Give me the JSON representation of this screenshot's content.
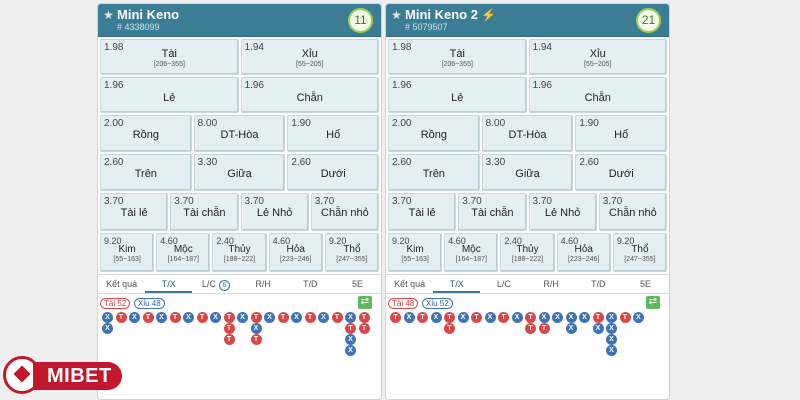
{
  "colors": {
    "header": "#3a7d94",
    "tai": "#d94848",
    "xiu": "#3f73b8",
    "brand": "#c2172c"
  },
  "panels": [
    {
      "title": "Mini Keno",
      "has_bolt": false,
      "game_id": "# 4338099",
      "count": "11",
      "r1": [
        {
          "odds": "1.98",
          "name": "Tài",
          "range": "[206~355]"
        },
        {
          "odds": "1.94",
          "name": "Xỉu",
          "range": "[55~205]"
        }
      ],
      "r2": [
        {
          "odds": "1.96",
          "name": "Lẻ"
        },
        {
          "odds": "1.96",
          "name": "Chẵn"
        }
      ],
      "r3": [
        {
          "odds": "2.00",
          "name": "Rồng"
        },
        {
          "odds": "8.00",
          "name": "DT-Hòa"
        },
        {
          "odds": "1.90",
          "name": "Hổ"
        }
      ],
      "r4": [
        {
          "odds": "2.60",
          "name": "Trên"
        },
        {
          "odds": "3.30",
          "name": "Giữa"
        },
        {
          "odds": "2.60",
          "name": "Dưới"
        }
      ],
      "r5": [
        {
          "odds": "3.70",
          "name": "Tài lẻ"
        },
        {
          "odds": "3.70",
          "name": "Tài chẵn"
        },
        {
          "odds": "3.70",
          "name": "Lẻ Nhỏ"
        },
        {
          "odds": "3.70",
          "name": "Chẵn nhỏ"
        }
      ],
      "r6": [
        {
          "odds": "9.20",
          "name": "Kim",
          "range": "[55~163]"
        },
        {
          "odds": "4.60",
          "name": "Mộc",
          "range": "[164~187]"
        },
        {
          "odds": "2.40",
          "name": "Thủy",
          "range": "[188~222]"
        },
        {
          "odds": "4.60",
          "name": "Hỏa",
          "range": "[223~246]"
        },
        {
          "odds": "9.20",
          "name": "Thổ",
          "range": "[247~355]"
        }
      ],
      "tabs": [
        "Kết quả",
        "T/X",
        "L/C",
        "R/H",
        "T/D",
        "5E"
      ],
      "lc_badge": "6",
      "tai_label": "Tài 52",
      "xiu_label": "Xỉu 48",
      "history": [
        [
          "X",
          "X"
        ],
        [
          "T"
        ],
        [
          "X"
        ],
        [
          "T"
        ],
        [
          "X"
        ],
        [
          "T"
        ],
        [
          "X"
        ],
        [
          "T"
        ],
        [
          "X"
        ],
        [
          "T",
          "T",
          "T"
        ],
        [
          "X"
        ],
        [
          "T",
          "X",
          "T"
        ],
        [
          "X"
        ],
        [
          "T"
        ],
        [
          "X"
        ],
        [
          "T"
        ],
        [
          "X"
        ],
        [
          "T"
        ],
        [
          "X",
          "T",
          "X",
          "X"
        ],
        [
          "T",
          "T"
        ]
      ]
    },
    {
      "title": "Mini Keno 2",
      "has_bolt": true,
      "game_id": "# 5079507",
      "count": "21",
      "r1": [
        {
          "odds": "1.98",
          "name": "Tài",
          "range": "[206~355]"
        },
        {
          "odds": "1.94",
          "name": "Xỉu",
          "range": "[55~205]"
        }
      ],
      "r2": [
        {
          "odds": "1.96",
          "name": "Lẻ"
        },
        {
          "odds": "1.96",
          "name": "Chẵn"
        }
      ],
      "r3": [
        {
          "odds": "2.00",
          "name": "Rồng"
        },
        {
          "odds": "8.00",
          "name": "DT-Hòa"
        },
        {
          "odds": "1.90",
          "name": "Hổ"
        }
      ],
      "r4": [
        {
          "odds": "2.60",
          "name": "Trên"
        },
        {
          "odds": "3.30",
          "name": "Giữa"
        },
        {
          "odds": "2.60",
          "name": "Dưới"
        }
      ],
      "r5": [
        {
          "odds": "3.70",
          "name": "Tài lẻ"
        },
        {
          "odds": "3.70",
          "name": "Tài chẵn"
        },
        {
          "odds": "3.70",
          "name": "Lẻ Nhỏ"
        },
        {
          "odds": "3.70",
          "name": "Chẵn nhỏ"
        }
      ],
      "r6": [
        {
          "odds": "9.20",
          "name": "Kim",
          "range": "[55~163]"
        },
        {
          "odds": "4.60",
          "name": "Mộc",
          "range": "[164~187]"
        },
        {
          "odds": "2.40",
          "name": "Thủy",
          "range": "[188~222]"
        },
        {
          "odds": "4.60",
          "name": "Hỏa",
          "range": "[223~246]"
        },
        {
          "odds": "9.20",
          "name": "Thổ",
          "range": "[247~355]"
        }
      ],
      "tabs": [
        "Kết quả",
        "T/X",
        "L/C",
        "R/H",
        "T/D",
        "5E"
      ],
      "lc_badge": "",
      "tai_label": "Tài 48",
      "xiu_label": "Xỉu 52",
      "history": [
        [
          "T"
        ],
        [
          "X"
        ],
        [
          "T"
        ],
        [
          "X"
        ],
        [
          "T",
          "T"
        ],
        [
          "X"
        ],
        [
          "T"
        ],
        [
          "X"
        ],
        [
          "T"
        ],
        [
          "X"
        ],
        [
          "T",
          "T"
        ],
        [
          "X",
          "T"
        ],
        [
          "X"
        ],
        [
          "X",
          "X"
        ],
        [
          "X"
        ],
        [
          "T",
          "X"
        ],
        [
          "X",
          "X",
          "X",
          "X"
        ],
        [
          "T"
        ],
        [
          "X"
        ]
      ]
    }
  ],
  "logo": {
    "text": "MIBET"
  }
}
